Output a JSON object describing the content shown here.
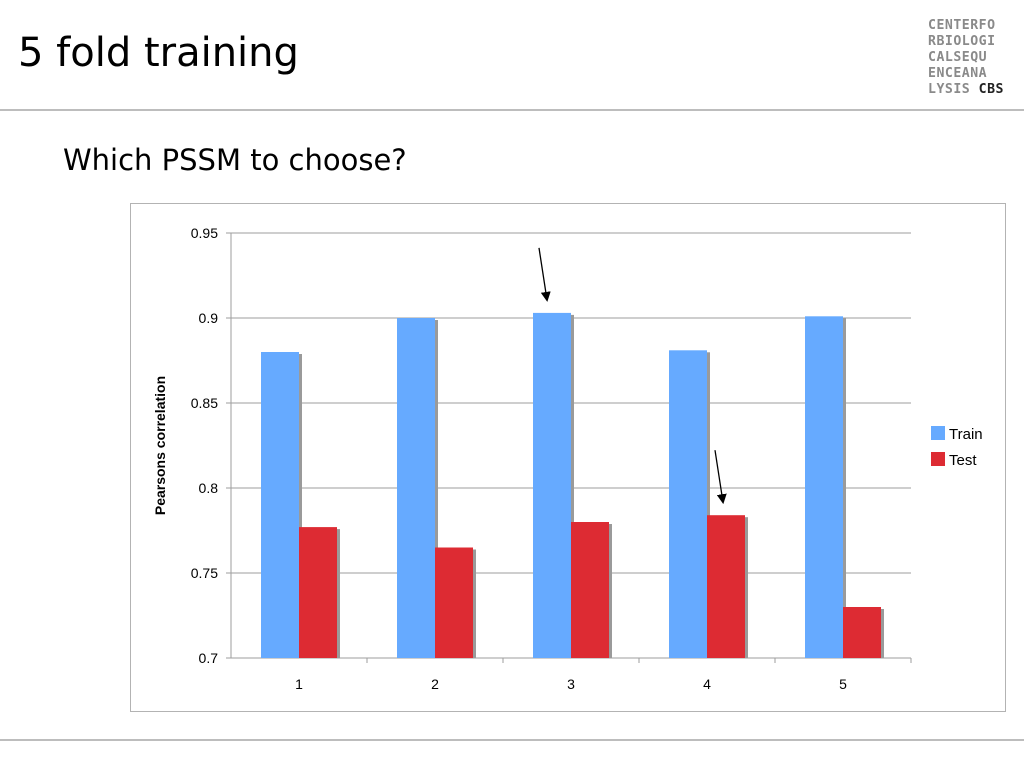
{
  "slide": {
    "title": "5 fold training",
    "subtitle": "Which PSSM to choose?"
  },
  "logo": {
    "lines": [
      "CENTERFO",
      "RBIOLOGI",
      "CALSEQU",
      "ENCEANA",
      "LYSIS"
    ],
    "brand": "CBS"
  },
  "colors": {
    "train": "#66aaff",
    "test": "#dd2b33",
    "grid": "#9e9e9e",
    "shadow": "#9a9a9a"
  },
  "chart_data": {
    "type": "bar",
    "title": "",
    "xlabel": "",
    "ylabel": "Pearsons correlation",
    "categories": [
      "1",
      "2",
      "3",
      "4",
      "5"
    ],
    "series": [
      {
        "name": "Train",
        "values": [
          0.88,
          0.9,
          0.903,
          0.881,
          0.901
        ]
      },
      {
        "name": "Test",
        "values": [
          0.777,
          0.765,
          0.78,
          0.784,
          0.73
        ]
      }
    ],
    "ylim": [
      0.7,
      0.95
    ],
    "yticks": [
      "0.7",
      "0.75",
      "0.8",
      "0.85",
      "0.9",
      "0.95"
    ],
    "grid": true,
    "legend": "right",
    "annotations": [
      {
        "type": "arrow",
        "category": "3",
        "series": "Train"
      },
      {
        "type": "arrow",
        "category": "4",
        "series": "Test"
      }
    ]
  }
}
